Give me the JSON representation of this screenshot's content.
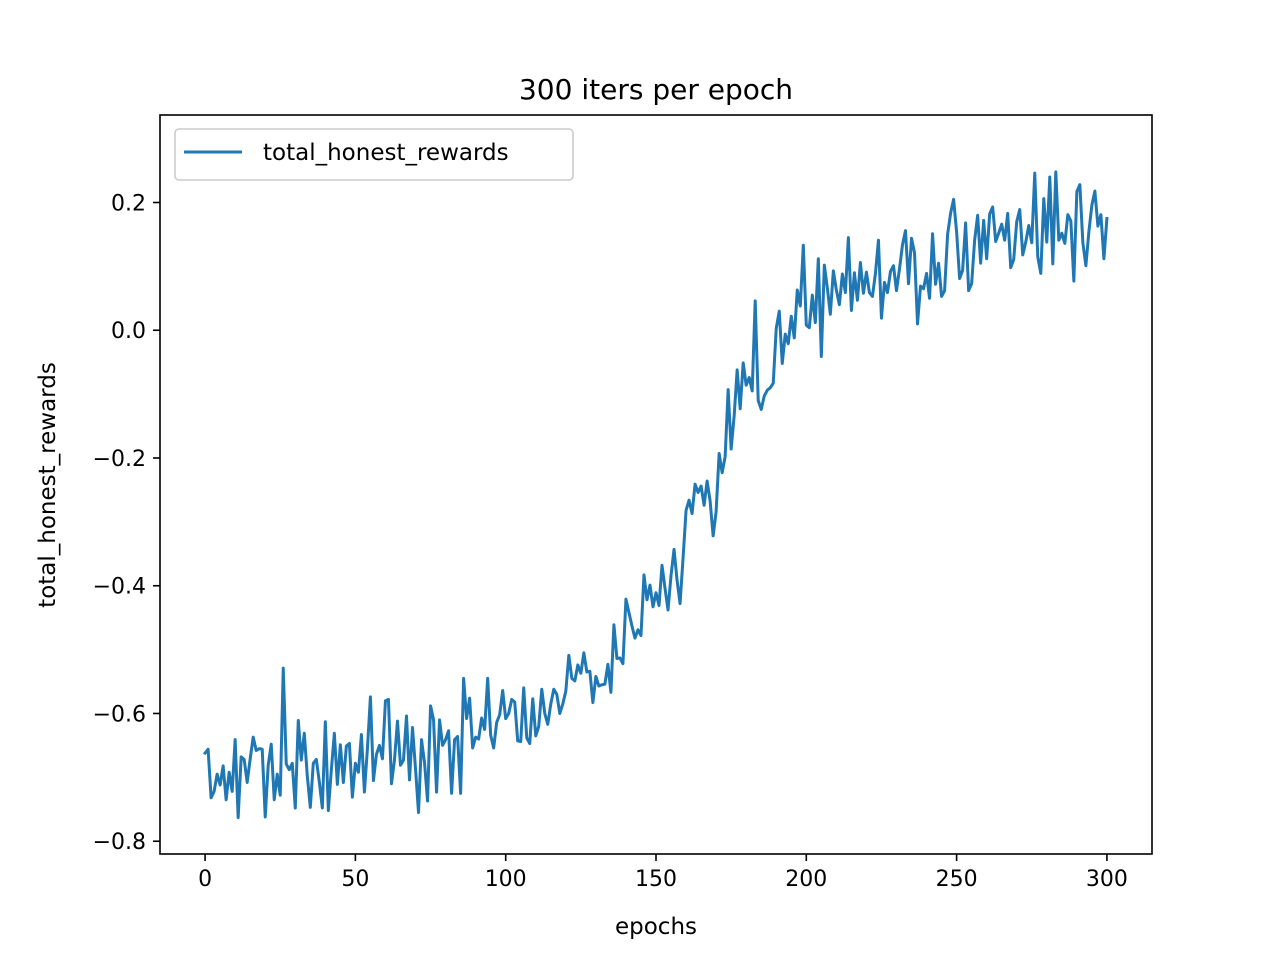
{
  "chart_data": {
    "type": "line",
    "title": "300 iters per epoch",
    "xlabel": "epochs",
    "ylabel": "total_honest_rewards",
    "xlim": [
      -15,
      315
    ],
    "ylim": [
      -0.82,
      0.337
    ],
    "xticks": [
      0,
      50,
      100,
      150,
      200,
      250,
      300
    ],
    "xtick_labels": [
      "0",
      "50",
      "100",
      "150",
      "200",
      "250",
      "300"
    ],
    "yticks": [
      -0.8,
      -0.6,
      -0.4,
      -0.2,
      0.0,
      0.2
    ],
    "ytick_labels": [
      "−0.8",
      "−0.6",
      "−0.4",
      "−0.2",
      "0.0",
      "0.2"
    ],
    "grid": false,
    "legend": {
      "position": "upper-left"
    },
    "series": [
      {
        "name": "total_honest_rewards",
        "color": "#1f77b4",
        "x_start": 0,
        "x_step": 1,
        "values": [
          -0.662,
          -0.656,
          -0.732,
          -0.722,
          -0.695,
          -0.712,
          -0.682,
          -0.735,
          -0.692,
          -0.722,
          -0.641,
          -0.763,
          -0.668,
          -0.672,
          -0.708,
          -0.671,
          -0.637,
          -0.658,
          -0.655,
          -0.656,
          -0.762,
          -0.681,
          -0.648,
          -0.735,
          -0.695,
          -0.728,
          -0.529,
          -0.679,
          -0.688,
          -0.678,
          -0.748,
          -0.611,
          -0.673,
          -0.631,
          -0.698,
          -0.747,
          -0.678,
          -0.672,
          -0.707,
          -0.748,
          -0.613,
          -0.752,
          -0.688,
          -0.631,
          -0.711,
          -0.649,
          -0.708,
          -0.651,
          -0.647,
          -0.731,
          -0.678,
          -0.692,
          -0.633,
          -0.723,
          -0.655,
          -0.574,
          -0.705,
          -0.664,
          -0.65,
          -0.671,
          -0.58,
          -0.578,
          -0.71,
          -0.673,
          -0.612,
          -0.681,
          -0.673,
          -0.604,
          -0.704,
          -0.622,
          -0.687,
          -0.755,
          -0.641,
          -0.677,
          -0.737,
          -0.588,
          -0.61,
          -0.723,
          -0.61,
          -0.65,
          -0.641,
          -0.627,
          -0.725,
          -0.641,
          -0.636,
          -0.725,
          -0.545,
          -0.608,
          -0.576,
          -0.654,
          -0.637,
          -0.64,
          -0.607,
          -0.625,
          -0.545,
          -0.634,
          -0.654,
          -0.614,
          -0.602,
          -0.564,
          -0.608,
          -0.6,
          -0.578,
          -0.582,
          -0.643,
          -0.644,
          -0.56,
          -0.638,
          -0.647,
          -0.577,
          -0.635,
          -0.62,
          -0.562,
          -0.6,
          -0.617,
          -0.585,
          -0.562,
          -0.57,
          -0.6,
          -0.585,
          -0.565,
          -0.509,
          -0.545,
          -0.549,
          -0.524,
          -0.537,
          -0.505,
          -0.535,
          -0.534,
          -0.583,
          -0.542,
          -0.557,
          -0.555,
          -0.554,
          -0.523,
          -0.567,
          -0.461,
          -0.514,
          -0.513,
          -0.522,
          -0.421,
          -0.442,
          -0.463,
          -0.482,
          -0.469,
          -0.478,
          -0.383,
          -0.422,
          -0.399,
          -0.433,
          -0.411,
          -0.431,
          -0.368,
          -0.404,
          -0.438,
          -0.384,
          -0.343,
          -0.391,
          -0.428,
          -0.357,
          -0.282,
          -0.266,
          -0.287,
          -0.241,
          -0.254,
          -0.244,
          -0.274,
          -0.236,
          -0.267,
          -0.322,
          -0.284,
          -0.193,
          -0.223,
          -0.198,
          -0.093,
          -0.186,
          -0.134,
          -0.062,
          -0.123,
          -0.051,
          -0.086,
          -0.074,
          -0.095,
          0.046,
          -0.11,
          -0.124,
          -0.103,
          -0.094,
          -0.09,
          -0.083,
          0.003,
          0.03,
          -0.052,
          -0.006,
          -0.021,
          0.022,
          -0.012,
          0.063,
          0.038,
          0.133,
          0.008,
          0.004,
          0.055,
          0.012,
          0.112,
          -0.041,
          0.102,
          0.066,
          0.025,
          0.093,
          0.063,
          0.04,
          0.088,
          0.059,
          0.145,
          0.031,
          0.09,
          0.047,
          0.106,
          0.058,
          0.091,
          0.059,
          0.053,
          0.089,
          0.141,
          0.019,
          0.075,
          0.059,
          0.092,
          0.101,
          0.062,
          0.096,
          0.134,
          0.156,
          0.073,
          0.144,
          0.121,
          0.01,
          0.069,
          0.065,
          0.089,
          0.05,
          0.151,
          0.072,
          0.105,
          0.053,
          0.062,
          0.15,
          0.183,
          0.205,
          0.154,
          0.081,
          0.094,
          0.168,
          0.062,
          0.073,
          0.141,
          0.18,
          0.105,
          0.172,
          0.112,
          0.182,
          0.193,
          0.139,
          0.152,
          0.166,
          0.141,
          0.183,
          0.098,
          0.111,
          0.17,
          0.189,
          0.118,
          0.138,
          0.164,
          0.137,
          0.246,
          0.115,
          0.089,
          0.206,
          0.138,
          0.24,
          0.104,
          0.248,
          0.141,
          0.152,
          0.136,
          0.181,
          0.171,
          0.077,
          0.217,
          0.228,
          0.137,
          0.101,
          0.154,
          0.196,
          0.218,
          0.163,
          0.181,
          0.112,
          0.175
        ]
      }
    ]
  }
}
